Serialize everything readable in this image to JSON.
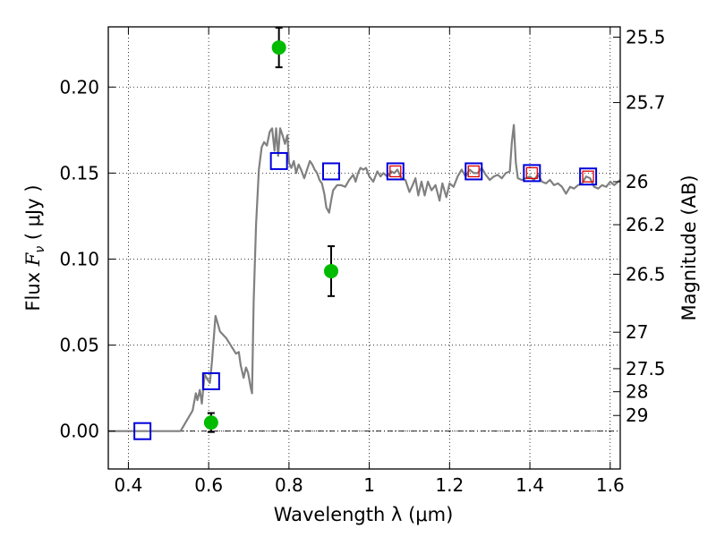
{
  "chart_data": {
    "type": "scatter",
    "xlabel": "Wavelength  λ (μm)",
    "ylabel_prefix": "Flux  ",
    "ylabel_symbol": "F",
    "ylabel_sub": "ν",
    "ylabel_suffix": "  ( μJy )",
    "ylabel_right": "Magnitude (AB)",
    "xlim": [
      0.35,
      1.625
    ],
    "ylim": [
      -0.022,
      0.235
    ],
    "x_ticks": [
      0.4,
      0.6,
      0.8,
      1.0,
      1.2,
      1.4,
      1.6
    ],
    "x_tick_labels": [
      "0.4",
      "0.6",
      "0.8",
      "1",
      "1.2",
      "1.4",
      "1.6"
    ],
    "y_ticks": [
      0.0,
      0.05,
      0.1,
      0.15,
      0.2
    ],
    "y_tick_labels": [
      "0.00",
      "0.05",
      "0.10",
      "0.15",
      "0.20"
    ],
    "mag_ticks": [
      {
        "value": 0.229,
        "label": "25.5"
      },
      {
        "value": 0.191,
        "label": "25.7"
      },
      {
        "value": 0.145,
        "label": "26"
      },
      {
        "value": 0.12,
        "label": "26.2"
      },
      {
        "value": 0.0912,
        "label": "26.5"
      },
      {
        "value": 0.0575,
        "label": "27"
      },
      {
        "value": 0.0363,
        "label": "27.5"
      },
      {
        "value": 0.0229,
        "label": "28"
      },
      {
        "value": 0.0091,
        "label": "29"
      }
    ],
    "grid": true,
    "zero_line": true,
    "colors": {
      "spectrum": "#808080",
      "observed": "#00bb00",
      "model_box": "#0000dd",
      "model_box_inner": "#dd0000",
      "error_bar": "#000000"
    },
    "series": [
      {
        "kind": "line",
        "points": [
          [
            0.35,
            0.0
          ],
          [
            0.53,
            0.0
          ],
          [
            0.545,
            0.006
          ],
          [
            0.56,
            0.012
          ],
          [
            0.568,
            0.022
          ],
          [
            0.572,
            0.018
          ],
          [
            0.578,
            0.024
          ],
          [
            0.583,
            0.016
          ],
          [
            0.59,
            0.033
          ],
          [
            0.597,
            0.03
          ],
          [
            0.603,
            0.028
          ],
          [
            0.608,
            0.04
          ],
          [
            0.613,
            0.055
          ],
          [
            0.617,
            0.067
          ],
          [
            0.622,
            0.063
          ],
          [
            0.628,
            0.058
          ],
          [
            0.636,
            0.056
          ],
          [
            0.644,
            0.054
          ],
          [
            0.652,
            0.051
          ],
          [
            0.66,
            0.048
          ],
          [
            0.668,
            0.045
          ],
          [
            0.675,
            0.046
          ],
          [
            0.68,
            0.038
          ],
          [
            0.687,
            0.031
          ],
          [
            0.693,
            0.037
          ],
          [
            0.698,
            0.034
          ],
          [
            0.705,
            0.025
          ],
          [
            0.708,
            0.022
          ],
          [
            0.712,
            0.075
          ],
          [
            0.718,
            0.12
          ],
          [
            0.725,
            0.152
          ],
          [
            0.732,
            0.165
          ],
          [
            0.738,
            0.168
          ],
          [
            0.745,
            0.166
          ],
          [
            0.752,
            0.174
          ],
          [
            0.758,
            0.176
          ],
          [
            0.764,
            0.163
          ],
          [
            0.768,
            0.176
          ],
          [
            0.773,
            0.16
          ],
          [
            0.778,
            0.176
          ],
          [
            0.784,
            0.172
          ],
          [
            0.79,
            0.167
          ],
          [
            0.796,
            0.172
          ],
          [
            0.8,
            0.156
          ],
          [
            0.806,
            0.153
          ],
          [
            0.812,
            0.157
          ],
          [
            0.818,
            0.15
          ],
          [
            0.824,
            0.155
          ],
          [
            0.83,
            0.152
          ],
          [
            0.838,
            0.147
          ],
          [
            0.845,
            0.152
          ],
          [
            0.852,
            0.157
          ],
          [
            0.858,
            0.155
          ],
          [
            0.864,
            0.152
          ],
          [
            0.87,
            0.15
          ],
          [
            0.876,
            0.146
          ],
          [
            0.882,
            0.144
          ],
          [
            0.888,
            0.138
          ],
          [
            0.893,
            0.13
          ],
          [
            0.9,
            0.127
          ],
          [
            0.905,
            0.134
          ],
          [
            0.91,
            0.14
          ],
          [
            0.92,
            0.143
          ],
          [
            0.93,
            0.143
          ],
          [
            0.94,
            0.142
          ],
          [
            0.95,
            0.146
          ],
          [
            0.96,
            0.149
          ],
          [
            0.966,
            0.145
          ],
          [
            0.972,
            0.15
          ],
          [
            0.978,
            0.153
          ],
          [
            0.985,
            0.152
          ],
          [
            0.992,
            0.153
          ],
          [
            1.0,
            0.148
          ],
          [
            1.01,
            0.145
          ],
          [
            1.02,
            0.151
          ],
          [
            1.028,
            0.148
          ],
          [
            1.035,
            0.15
          ],
          [
            1.045,
            0.148
          ],
          [
            1.055,
            0.151
          ],
          [
            1.062,
            0.15
          ],
          [
            1.07,
            0.152
          ],
          [
            1.08,
            0.147
          ],
          [
            1.09,
            0.146
          ],
          [
            1.1,
            0.139
          ],
          [
            1.108,
            0.143
          ],
          [
            1.115,
            0.147
          ],
          [
            1.122,
            0.137
          ],
          [
            1.13,
            0.145
          ],
          [
            1.138,
            0.137
          ],
          [
            1.146,
            0.145
          ],
          [
            1.155,
            0.14
          ],
          [
            1.165,
            0.143
          ],
          [
            1.175,
            0.134
          ],
          [
            1.182,
            0.144
          ],
          [
            1.192,
            0.136
          ],
          [
            1.2,
            0.144
          ],
          [
            1.21,
            0.142
          ],
          [
            1.22,
            0.148
          ],
          [
            1.23,
            0.152
          ],
          [
            1.24,
            0.148
          ],
          [
            1.25,
            0.152
          ],
          [
            1.26,
            0.15
          ],
          [
            1.27,
            0.15
          ],
          [
            1.28,
            0.153
          ],
          [
            1.29,
            0.149
          ],
          [
            1.3,
            0.146
          ],
          [
            1.31,
            0.148
          ],
          [
            1.32,
            0.149
          ],
          [
            1.33,
            0.147
          ],
          [
            1.34,
            0.15
          ],
          [
            1.35,
            0.151
          ],
          [
            1.355,
            0.168
          ],
          [
            1.36,
            0.178
          ],
          [
            1.365,
            0.156
          ],
          [
            1.37,
            0.147
          ],
          [
            1.38,
            0.146
          ],
          [
            1.39,
            0.147
          ],
          [
            1.4,
            0.148
          ],
          [
            1.41,
            0.146
          ],
          [
            1.42,
            0.149
          ],
          [
            1.43,
            0.145
          ],
          [
            1.44,
            0.144
          ],
          [
            1.45,
            0.146
          ],
          [
            1.46,
            0.143
          ],
          [
            1.47,
            0.144
          ],
          [
            1.48,
            0.142
          ],
          [
            1.49,
            0.138
          ],
          [
            1.5,
            0.142
          ],
          [
            1.51,
            0.141
          ],
          [
            1.52,
            0.143
          ],
          [
            1.53,
            0.144
          ],
          [
            1.54,
            0.148
          ],
          [
            1.55,
            0.147
          ],
          [
            1.56,
            0.142
          ],
          [
            1.57,
            0.141
          ],
          [
            1.58,
            0.143
          ],
          [
            1.59,
            0.142
          ],
          [
            1.6,
            0.145
          ],
          [
            1.61,
            0.143
          ],
          [
            1.625,
            0.146
          ]
        ]
      },
      {
        "kind": "model_photometry",
        "points": [
          {
            "x": 0.435,
            "y": 0.0
          },
          {
            "x": 0.606,
            "y": 0.029
          },
          {
            "x": 0.775,
            "y": 0.157
          },
          {
            "x": 0.905,
            "y": 0.151
          },
          {
            "x": 1.065,
            "y": 0.151
          },
          {
            "x": 1.26,
            "y": 0.151
          },
          {
            "x": 1.405,
            "y": 0.15
          },
          {
            "x": 1.545,
            "y": 0.148
          }
        ],
        "inner_points": [
          {
            "x": 1.065,
            "y": 0.151
          },
          {
            "x": 1.26,
            "y": 0.151
          },
          {
            "x": 1.405,
            "y": 0.15
          },
          {
            "x": 1.545,
            "y": 0.148
          }
        ]
      },
      {
        "kind": "observed_photometry",
        "points": [
          {
            "x": 0.606,
            "y": 0.005,
            "yerr": 0.0055
          },
          {
            "x": 0.775,
            "y": 0.223,
            "yerr": 0.0115
          },
          {
            "x": 0.905,
            "y": 0.093,
            "yerr": 0.0145
          }
        ]
      }
    ]
  }
}
